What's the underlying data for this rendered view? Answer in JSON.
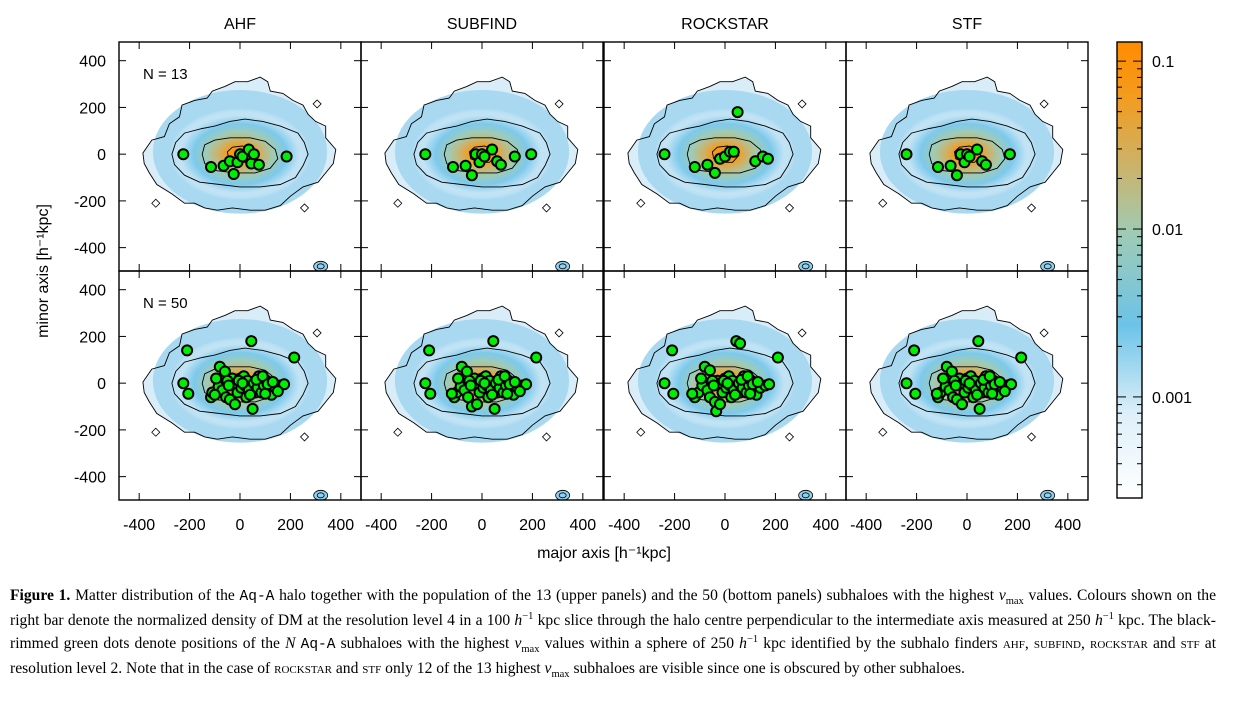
{
  "chart_data": {
    "type": "scatter",
    "panel_titles": [
      "AHF",
      "SUBFIND",
      "ROCKSTAR",
      "STF"
    ],
    "row_labels": [
      "N = 13",
      "N = 50"
    ],
    "xlabel": "major axis [h⁻¹kpc]",
    "ylabel": "minor axis [h⁻¹kpc]",
    "xlim": [
      -480,
      480
    ],
    "ylim": [
      -500,
      480
    ],
    "xticks": [
      -400,
      -200,
      0,
      200,
      400
    ],
    "yticks": [
      400,
      200,
      0,
      -200,
      -400
    ],
    "xtick_labels": [
      "-400",
      "-200",
      "0",
      "200",
      "400"
    ],
    "ytick_labels": [
      "400",
      "200",
      "0",
      "-200",
      "-400"
    ],
    "colorbar": {
      "scale": "log",
      "range": [
        0.00025,
        0.13
      ],
      "tick_values": [
        0.1,
        0.01,
        0.001
      ],
      "tick_labels": [
        "0.1",
        "0.01",
        "0.001"
      ],
      "colors": [
        "#ffffff",
        "#cfe8f6",
        "#5bbde5",
        "#9fcbb5",
        "#c9b46e",
        "#f39c1e",
        "#ff8c00"
      ]
    },
    "background": "normalized DM density map (same for all panels)",
    "marker": {
      "fill": "#00ee00",
      "edge": "#000000"
    },
    "panels": [
      {
        "row": 0,
        "finder": "AHF",
        "points": [
          [
            -225,
            0
          ],
          [
            -115,
            -55
          ],
          [
            -65,
            -50
          ],
          [
            -40,
            -30
          ],
          [
            -25,
            -85
          ],
          [
            -10,
            -35
          ],
          [
            0,
            0
          ],
          [
            10,
            -10
          ],
          [
            35,
            20
          ],
          [
            45,
            -40
          ],
          [
            55,
            0
          ],
          [
            75,
            -45
          ],
          [
            185,
            -10
          ]
        ]
      },
      {
        "row": 0,
        "finder": "SUBFIND",
        "points": [
          [
            -225,
            0
          ],
          [
            -115,
            -55
          ],
          [
            -65,
            -50
          ],
          [
            -40,
            -90
          ],
          [
            -25,
            0
          ],
          [
            -10,
            -35
          ],
          [
            0,
            0
          ],
          [
            10,
            -10
          ],
          [
            40,
            20
          ],
          [
            60,
            -30
          ],
          [
            75,
            -45
          ],
          [
            130,
            -10
          ],
          [
            195,
            0
          ]
        ]
      },
      {
        "row": 0,
        "finder": "ROCKSTAR",
        "points": [
          [
            -240,
            0
          ],
          [
            -120,
            -55
          ],
          [
            -70,
            -45
          ],
          [
            -40,
            -80
          ],
          [
            -20,
            -20
          ],
          [
            0,
            -10
          ],
          [
            20,
            10
          ],
          [
            35,
            10
          ],
          [
            50,
            180
          ],
          [
            120,
            -30
          ],
          [
            150,
            -10
          ],
          [
            170,
            -20
          ]
        ]
      },
      {
        "row": 0,
        "finder": "STF",
        "points": [
          [
            -240,
            0
          ],
          [
            -115,
            -55
          ],
          [
            -65,
            -50
          ],
          [
            -40,
            -90
          ],
          [
            -25,
            0
          ],
          [
            -10,
            -35
          ],
          [
            0,
            0
          ],
          [
            10,
            -10
          ],
          [
            40,
            20
          ],
          [
            60,
            -30
          ],
          [
            75,
            -45
          ],
          [
            170,
            0
          ]
        ]
      },
      {
        "row": 1,
        "finder": "AHF",
        "points": [
          [
            -210,
            140
          ],
          [
            -225,
            0
          ],
          [
            -205,
            -45
          ],
          [
            -115,
            -60
          ],
          [
            -110,
            -40
          ],
          [
            -85,
            -15
          ],
          [
            -80,
            70
          ],
          [
            -70,
            -30
          ],
          [
            -60,
            50
          ],
          [
            -55,
            -60
          ],
          [
            -40,
            -70
          ],
          [
            -30,
            20
          ],
          [
            -20,
            -90
          ],
          [
            -15,
            0
          ],
          [
            -10,
            -40
          ],
          [
            0,
            20
          ],
          [
            5,
            -20
          ],
          [
            15,
            30
          ],
          [
            20,
            -10
          ],
          [
            25,
            -60
          ],
          [
            30,
            10
          ],
          [
            35,
            -30
          ],
          [
            45,
            180
          ],
          [
            50,
            -110
          ],
          [
            55,
            0
          ],
          [
            60,
            -40
          ],
          [
            70,
            -20
          ],
          [
            75,
            30
          ],
          [
            85,
            -40
          ],
          [
            95,
            -10
          ],
          [
            105,
            10
          ],
          [
            115,
            -30
          ],
          [
            125,
            -50
          ],
          [
            140,
            -20
          ],
          [
            160,
            -10
          ],
          [
            175,
            -5
          ],
          [
            215,
            110
          ],
          [
            -100,
            -50
          ],
          [
            -95,
            20
          ],
          [
            -50,
            10
          ],
          [
            -45,
            -10
          ],
          [
            -5,
            10
          ],
          [
            10,
            0
          ],
          [
            40,
            -50
          ],
          [
            65,
            15
          ],
          [
            90,
            30
          ],
          [
            100,
            -45
          ],
          [
            110,
            -5
          ],
          [
            130,
            5
          ],
          [
            150,
            -35
          ]
        ]
      },
      {
        "row": 1,
        "finder": "SUBFIND",
        "points": [
          [
            -210,
            140
          ],
          [
            -225,
            0
          ],
          [
            -205,
            -45
          ],
          [
            -110,
            -60
          ],
          [
            -100,
            -40
          ],
          [
            -85,
            -15
          ],
          [
            -80,
            70
          ],
          [
            -70,
            -30
          ],
          [
            -60,
            50
          ],
          [
            -55,
            -60
          ],
          [
            -40,
            -100
          ],
          [
            -30,
            20
          ],
          [
            -20,
            -90
          ],
          [
            -15,
            0
          ],
          [
            -10,
            -40
          ],
          [
            0,
            20
          ],
          [
            5,
            -20
          ],
          [
            15,
            30
          ],
          [
            20,
            -10
          ],
          [
            25,
            -60
          ],
          [
            30,
            10
          ],
          [
            35,
            -30
          ],
          [
            45,
            180
          ],
          [
            50,
            -110
          ],
          [
            55,
            0
          ],
          [
            60,
            -40
          ],
          [
            70,
            -20
          ],
          [
            75,
            30
          ],
          [
            85,
            -40
          ],
          [
            95,
            -10
          ],
          [
            105,
            10
          ],
          [
            115,
            -30
          ],
          [
            125,
            -50
          ],
          [
            140,
            -20
          ],
          [
            160,
            -10
          ],
          [
            175,
            -5
          ],
          [
            215,
            110
          ],
          [
            -120,
            -45
          ],
          [
            -95,
            20
          ],
          [
            -50,
            10
          ],
          [
            -45,
            -10
          ],
          [
            -5,
            10
          ],
          [
            10,
            0
          ],
          [
            40,
            -50
          ],
          [
            65,
            15
          ],
          [
            90,
            30
          ],
          [
            100,
            -45
          ],
          [
            110,
            -5
          ],
          [
            130,
            5
          ],
          [
            150,
            -35
          ]
        ]
      },
      {
        "row": 1,
        "finder": "ROCKSTAR",
        "points": [
          [
            -210,
            140
          ],
          [
            -240,
            0
          ],
          [
            -205,
            -45
          ],
          [
            -120,
            -60
          ],
          [
            -105,
            -40
          ],
          [
            -90,
            -10
          ],
          [
            -80,
            70
          ],
          [
            -70,
            -30
          ],
          [
            -60,
            55
          ],
          [
            -60,
            -60
          ],
          [
            -40,
            -80
          ],
          [
            -35,
            -120
          ],
          [
            -30,
            10
          ],
          [
            -20,
            -90
          ],
          [
            -15,
            0
          ],
          [
            -10,
            -40
          ],
          [
            0,
            20
          ],
          [
            5,
            -20
          ],
          [
            15,
            30
          ],
          [
            20,
            -10
          ],
          [
            25,
            -60
          ],
          [
            30,
            10
          ],
          [
            35,
            -30
          ],
          [
            45,
            180
          ],
          [
            60,
            170
          ],
          [
            55,
            0
          ],
          [
            60,
            -40
          ],
          [
            70,
            -20
          ],
          [
            75,
            30
          ],
          [
            85,
            -40
          ],
          [
            95,
            -10
          ],
          [
            105,
            10
          ],
          [
            115,
            -30
          ],
          [
            125,
            -50
          ],
          [
            140,
            -20
          ],
          [
            160,
            -10
          ],
          [
            175,
            -5
          ],
          [
            210,
            110
          ],
          [
            -130,
            -45
          ],
          [
            -95,
            20
          ],
          [
            -50,
            10
          ],
          [
            -45,
            -10
          ],
          [
            -5,
            10
          ],
          [
            10,
            0
          ],
          [
            40,
            -50
          ],
          [
            65,
            15
          ],
          [
            90,
            30
          ],
          [
            100,
            -45
          ],
          [
            110,
            -5
          ],
          [
            130,
            5
          ]
        ]
      },
      {
        "row": 1,
        "finder": "STF",
        "points": [
          [
            -210,
            140
          ],
          [
            -240,
            0
          ],
          [
            -205,
            -45
          ],
          [
            -115,
            -60
          ],
          [
            -105,
            -40
          ],
          [
            -85,
            -15
          ],
          [
            -80,
            70
          ],
          [
            -70,
            -30
          ],
          [
            -60,
            50
          ],
          [
            -55,
            -60
          ],
          [
            -40,
            -70
          ],
          [
            -30,
            20
          ],
          [
            -20,
            -90
          ],
          [
            -15,
            0
          ],
          [
            -10,
            -40
          ],
          [
            0,
            20
          ],
          [
            5,
            -20
          ],
          [
            15,
            30
          ],
          [
            20,
            -10
          ],
          [
            25,
            -60
          ],
          [
            30,
            10
          ],
          [
            35,
            -30
          ],
          [
            45,
            180
          ],
          [
            50,
            -110
          ],
          [
            55,
            0
          ],
          [
            60,
            -40
          ],
          [
            70,
            -20
          ],
          [
            75,
            30
          ],
          [
            85,
            -40
          ],
          [
            95,
            -10
          ],
          [
            105,
            10
          ],
          [
            115,
            -30
          ],
          [
            125,
            -50
          ],
          [
            140,
            -20
          ],
          [
            160,
            -10
          ],
          [
            175,
            -5
          ],
          [
            215,
            110
          ],
          [
            -120,
            -45
          ],
          [
            -95,
            20
          ],
          [
            -50,
            10
          ],
          [
            -45,
            -10
          ],
          [
            -5,
            10
          ],
          [
            10,
            0
          ],
          [
            40,
            -50
          ],
          [
            65,
            15
          ],
          [
            90,
            30
          ],
          [
            100,
            -45
          ],
          [
            110,
            -5
          ],
          [
            130,
            5
          ],
          [
            150,
            -35
          ]
        ]
      }
    ]
  },
  "caption": {
    "label": "Figure 1.",
    "p1": " Matter distribution of the ",
    "aqa": "Aq-A",
    "p2": " halo together with the population of the 13 (upper panels) and the 50 (bottom panels) subhaloes with the highest ",
    "v": "v",
    "max": "max",
    "p3": " values. Colours shown on the right bar denote the normalized density of DM at the resolution level 4 in a 100 ",
    "h": "h",
    "minus1": "−1",
    "p4": " kpc slice through the halo centre perpendicular to the intermediate axis measured at 250 ",
    "p5": " kpc. The black-rimmed green dots denote positions of the ",
    "n": "N",
    "p6": " subhaloes with the highest ",
    "p7": " values within a sphere of 250 ",
    "p8": " kpc identified by the subhalo finders ",
    "ahf": "ahf",
    "subfind": "subfind",
    "rockstar": "rockstar",
    "stf": "stf",
    "and": " and ",
    "comma": ", ",
    "p9": " at resolution level 2. Note that in the case of ",
    "p10": " only 12 of the 13 highest ",
    "p11": " subhaloes are visible since one is obscured by other subhaloes."
  }
}
